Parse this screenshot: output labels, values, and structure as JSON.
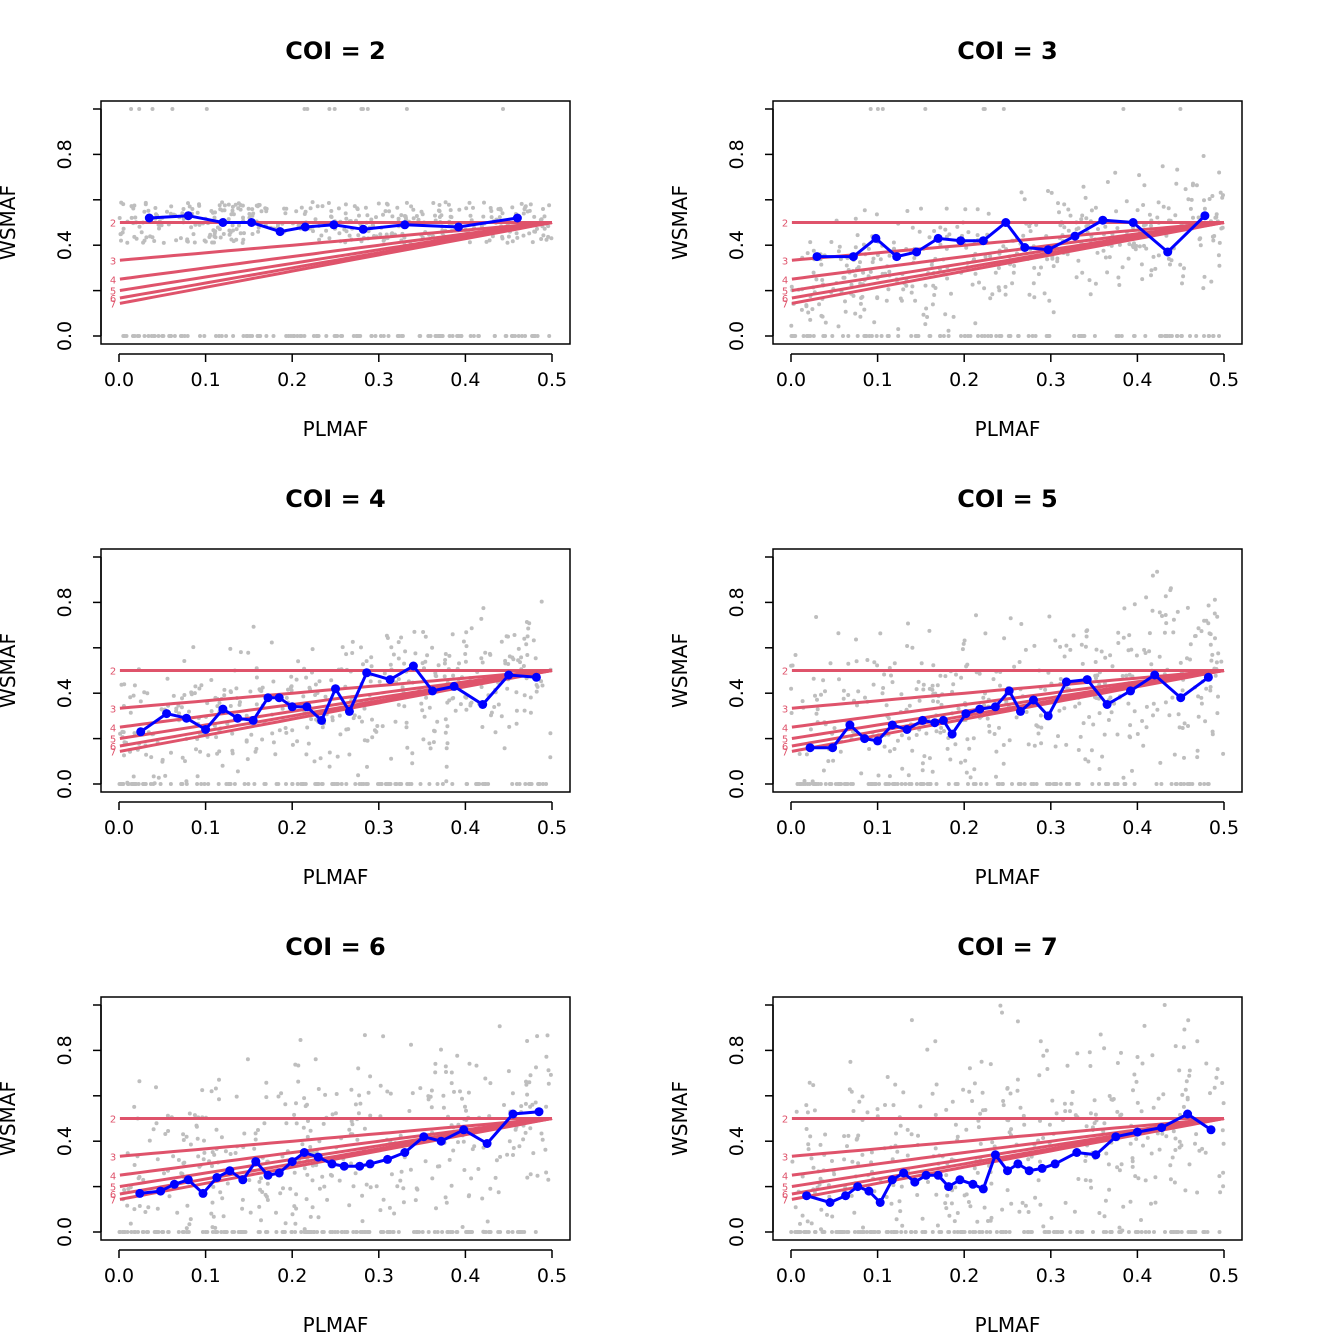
{
  "colors": {
    "curve": "#df536b",
    "observed": "#0000ff",
    "points": "#bebebe",
    "frame": "#000000"
  },
  "chart_data": [
    {
      "type": "scatter",
      "title": "COI = 2",
      "xlabel": "PLMAF",
      "ylabel": "WSMAF",
      "xlim": [
        0,
        0.5
      ],
      "ylim": [
        0,
        1
      ],
      "x_ticks": [
        "0.0",
        "0.1",
        "0.2",
        "0.3",
        "0.4",
        "0.5"
      ],
      "y_ticks": [
        "0.0",
        "0.4",
        "0.8"
      ],
      "curve_labels": [
        "2",
        "3",
        "4",
        "5",
        "6",
        "7"
      ],
      "observed_series": {
        "x": [
          0.035,
          0.08,
          0.12,
          0.153,
          0.186,
          0.215,
          0.248,
          0.282,
          0.33,
          0.392,
          0.46
        ],
        "y": [
          0.52,
          0.53,
          0.5,
          0.5,
          0.46,
          0.48,
          0.49,
          0.47,
          0.49,
          0.48,
          0.52
        ]
      }
    },
    {
      "type": "scatter",
      "title": "COI = 3",
      "xlabel": "PLMAF",
      "ylabel": "WSMAF",
      "xlim": [
        0,
        0.5
      ],
      "ylim": [
        0,
        1
      ],
      "x_ticks": [
        "0.0",
        "0.1",
        "0.2",
        "0.3",
        "0.4",
        "0.5"
      ],
      "y_ticks": [
        "0.0",
        "0.4",
        "0.8"
      ],
      "curve_labels": [
        "2",
        "3",
        "4",
        "5",
        "6",
        "7"
      ],
      "observed_series": {
        "x": [
          0.03,
          0.072,
          0.098,
          0.122,
          0.145,
          0.17,
          0.196,
          0.222,
          0.248,
          0.27,
          0.297,
          0.328,
          0.36,
          0.395,
          0.435,
          0.478
        ],
        "y": [
          0.35,
          0.35,
          0.43,
          0.35,
          0.37,
          0.43,
          0.42,
          0.42,
          0.5,
          0.39,
          0.38,
          0.44,
          0.51,
          0.5,
          0.37,
          0.53
        ]
      }
    },
    {
      "type": "scatter",
      "title": "COI = 4",
      "xlabel": "PLMAF",
      "ylabel": "WSMAF",
      "xlim": [
        0,
        0.5
      ],
      "ylim": [
        0,
        1
      ],
      "x_ticks": [
        "0.0",
        "0.1",
        "0.2",
        "0.3",
        "0.4",
        "0.5"
      ],
      "y_ticks": [
        "0.0",
        "0.4",
        "0.8"
      ],
      "curve_labels": [
        "2",
        "3",
        "4",
        "5",
        "6",
        "7"
      ],
      "observed_series": {
        "x": [
          0.025,
          0.055,
          0.078,
          0.1,
          0.12,
          0.137,
          0.155,
          0.172,
          0.185,
          0.2,
          0.217,
          0.234,
          0.25,
          0.266,
          0.286,
          0.313,
          0.34,
          0.362,
          0.387,
          0.42,
          0.45,
          0.482
        ],
        "y": [
          0.23,
          0.31,
          0.29,
          0.24,
          0.33,
          0.29,
          0.28,
          0.38,
          0.38,
          0.34,
          0.34,
          0.28,
          0.42,
          0.32,
          0.49,
          0.46,
          0.52,
          0.41,
          0.43,
          0.35,
          0.48,
          0.47
        ]
      }
    },
    {
      "type": "scatter",
      "title": "COI = 5",
      "xlabel": "PLMAF",
      "ylabel": "WSMAF",
      "xlim": [
        0,
        0.5
      ],
      "ylim": [
        0,
        1
      ],
      "x_ticks": [
        "0.0",
        "0.1",
        "0.2",
        "0.3",
        "0.4",
        "0.5"
      ],
      "y_ticks": [
        "0.0",
        "0.4",
        "0.8"
      ],
      "curve_labels": [
        "2",
        "3",
        "4",
        "5",
        "6",
        "7"
      ],
      "observed_series": {
        "x": [
          0.022,
          0.048,
          0.068,
          0.085,
          0.1,
          0.117,
          0.134,
          0.152,
          0.166,
          0.176,
          0.186,
          0.202,
          0.218,
          0.236,
          0.252,
          0.265,
          0.28,
          0.297,
          0.318,
          0.342,
          0.365,
          0.392,
          0.42,
          0.45,
          0.482
        ],
        "y": [
          0.16,
          0.16,
          0.26,
          0.2,
          0.19,
          0.26,
          0.24,
          0.28,
          0.27,
          0.28,
          0.22,
          0.31,
          0.33,
          0.34,
          0.41,
          0.32,
          0.37,
          0.3,
          0.45,
          0.46,
          0.35,
          0.41,
          0.48,
          0.38,
          0.47
        ]
      }
    },
    {
      "type": "scatter",
      "title": "COI = 6",
      "xlabel": "PLMAF",
      "ylabel": "WSMAF",
      "xlim": [
        0,
        0.5
      ],
      "ylim": [
        0,
        1
      ],
      "x_ticks": [
        "0.0",
        "0.1",
        "0.2",
        "0.3",
        "0.4",
        "0.5"
      ],
      "y_ticks": [
        "0.0",
        "0.4",
        "0.8"
      ],
      "curve_labels": [
        "2",
        "3",
        "4",
        "5",
        "6",
        "7"
      ],
      "observed_series": {
        "x": [
          0.024,
          0.048,
          0.064,
          0.08,
          0.097,
          0.113,
          0.128,
          0.143,
          0.158,
          0.172,
          0.185,
          0.2,
          0.214,
          0.23,
          0.246,
          0.26,
          0.278,
          0.29,
          0.31,
          0.33,
          0.352,
          0.372,
          0.398,
          0.425,
          0.455,
          0.485
        ],
        "y": [
          0.17,
          0.18,
          0.21,
          0.23,
          0.17,
          0.24,
          0.27,
          0.23,
          0.31,
          0.25,
          0.26,
          0.31,
          0.35,
          0.33,
          0.3,
          0.29,
          0.29,
          0.3,
          0.32,
          0.35,
          0.42,
          0.4,
          0.45,
          0.39,
          0.52,
          0.53
        ]
      }
    },
    {
      "type": "scatter",
      "title": "COI = 7",
      "xlabel": "PLMAF",
      "ylabel": "WSMAF",
      "xlim": [
        0,
        0.5
      ],
      "ylim": [
        0,
        1
      ],
      "x_ticks": [
        "0.0",
        "0.1",
        "0.2",
        "0.3",
        "0.4",
        "0.5"
      ],
      "y_ticks": [
        "0.0",
        "0.4",
        "0.8"
      ],
      "curve_labels": [
        "2",
        "3",
        "4",
        "5",
        "6",
        "7"
      ],
      "observed_series": {
        "x": [
          0.018,
          0.045,
          0.063,
          0.077,
          0.09,
          0.103,
          0.117,
          0.13,
          0.143,
          0.156,
          0.17,
          0.182,
          0.195,
          0.21,
          0.222,
          0.236,
          0.25,
          0.262,
          0.275,
          0.29,
          0.305,
          0.33,
          0.352,
          0.375,
          0.4,
          0.428,
          0.458,
          0.485
        ],
        "y": [
          0.16,
          0.13,
          0.16,
          0.2,
          0.18,
          0.13,
          0.23,
          0.26,
          0.22,
          0.25,
          0.25,
          0.2,
          0.23,
          0.21,
          0.19,
          0.34,
          0.27,
          0.3,
          0.27,
          0.28,
          0.3,
          0.35,
          0.34,
          0.42,
          0.44,
          0.46,
          0.52,
          0.45
        ]
      }
    }
  ]
}
